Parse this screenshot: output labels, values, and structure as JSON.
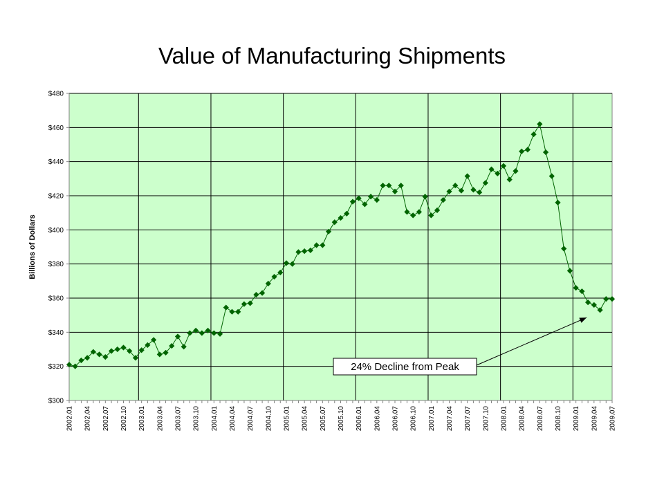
{
  "chart_data": {
    "type": "line",
    "title": "Value of Manufacturing Shipments",
    "ylabel": "Billions of Dollars",
    "xlabel": "",
    "ylim": [
      300,
      480
    ],
    "y_ticks": [
      300,
      320,
      340,
      360,
      380,
      400,
      420,
      440,
      460,
      480
    ],
    "y_tick_labels": [
      "$300",
      "$320",
      "$340",
      "$360",
      "$380",
      "$400",
      "$420",
      "$440",
      "$460",
      "$480"
    ],
    "x_tick_labels": [
      "2002.01",
      "2002.04",
      "2002.07",
      "2002.10",
      "2003.01",
      "2003.04",
      "2003.07",
      "2003.10",
      "2004.01",
      "2004.04",
      "2004.07",
      "2004.10",
      "2005.01",
      "2005.04",
      "2005.07",
      "2005.10",
      "2006.01",
      "2006.04",
      "2006.07",
      "2006.10",
      "2007.01",
      "2007.04",
      "2007.07",
      "2007.10",
      "2008.01",
      "2008.04",
      "2008.07",
      "2008.10",
      "2009.01",
      "2009.04",
      "2009.07"
    ],
    "grid": true,
    "plot_background": "#ccffcc",
    "series_color": "#006400",
    "series": [
      {
        "values": [
          321,
          320,
          323.5,
          325,
          328.5,
          327,
          325.5,
          329,
          330,
          331,
          329,
          325,
          329.5,
          332.5,
          335.5,
          327,
          328,
          332,
          337.5,
          331.5,
          339.5,
          341,
          339.5,
          341,
          339.5,
          339,
          354.5,
          352,
          352,
          356.5,
          357,
          362,
          363,
          368.5,
          372.5,
          375,
          380.5,
          380,
          387,
          387.5,
          388,
          391,
          391,
          399,
          404.5,
          407,
          409.5,
          416.5,
          418.5,
          415,
          419.5,
          417.5,
          426,
          426,
          422.5,
          426,
          410.5,
          408.5,
          410.5,
          419.5,
          408.5,
          411.5,
          417.5,
          422.5,
          426,
          423,
          431.5,
          423.5,
          422,
          427.5,
          435.5,
          433,
          437.5,
          429.5,
          434.5,
          446,
          447,
          456,
          462,
          445.5,
          431.5,
          416,
          389,
          376,
          366,
          364,
          357.5,
          356,
          353,
          359.5,
          359.5
        ]
      }
    ],
    "annotation": {
      "text": "24%  Decline from Peak",
      "points_to": "2009.03"
    }
  }
}
